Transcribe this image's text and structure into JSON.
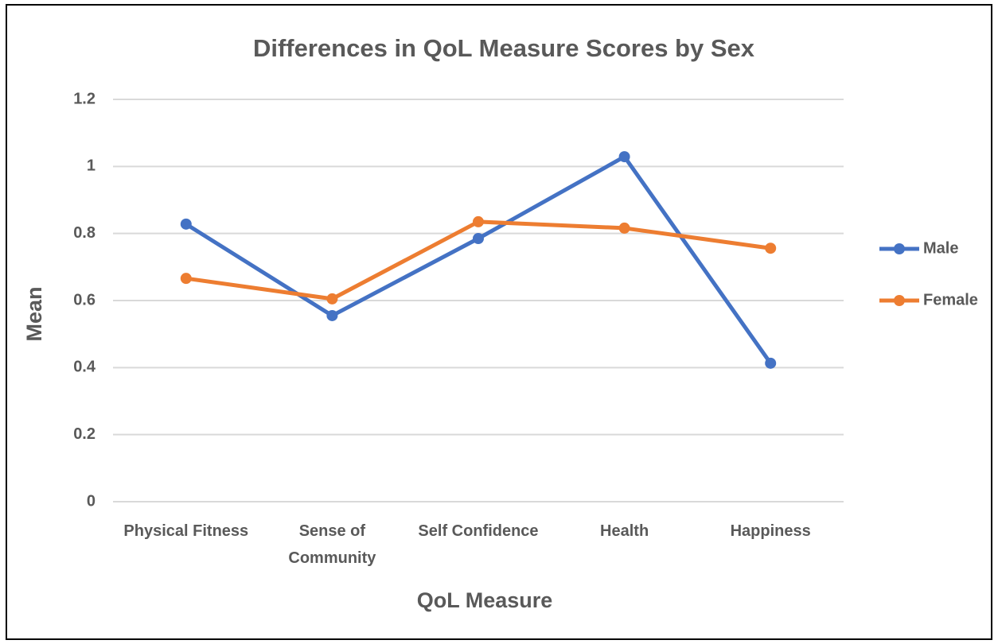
{
  "chart_data": {
    "type": "line",
    "title": "Differences in QoL Measure Scores by Sex",
    "x_label": "QoL Measure",
    "y_label": "Mean",
    "categories": [
      "Physical Fitness",
      "Sense of Community",
      "Self Confidence",
      "Health",
      "Happiness"
    ],
    "series": [
      {
        "name": "Male",
        "color": "#4472c4",
        "values": [
          0.828,
          0.555,
          0.785,
          1.029,
          0.413
        ]
      },
      {
        "name": "Female",
        "color": "#ed7d31",
        "values": [
          0.666,
          0.605,
          0.835,
          0.816,
          0.756
        ]
      }
    ],
    "ylim": [
      0,
      1.2
    ],
    "yticks": [
      0,
      0.2,
      0.4,
      0.6,
      0.8,
      1,
      1.2
    ],
    "grid": true,
    "legend": "right"
  }
}
